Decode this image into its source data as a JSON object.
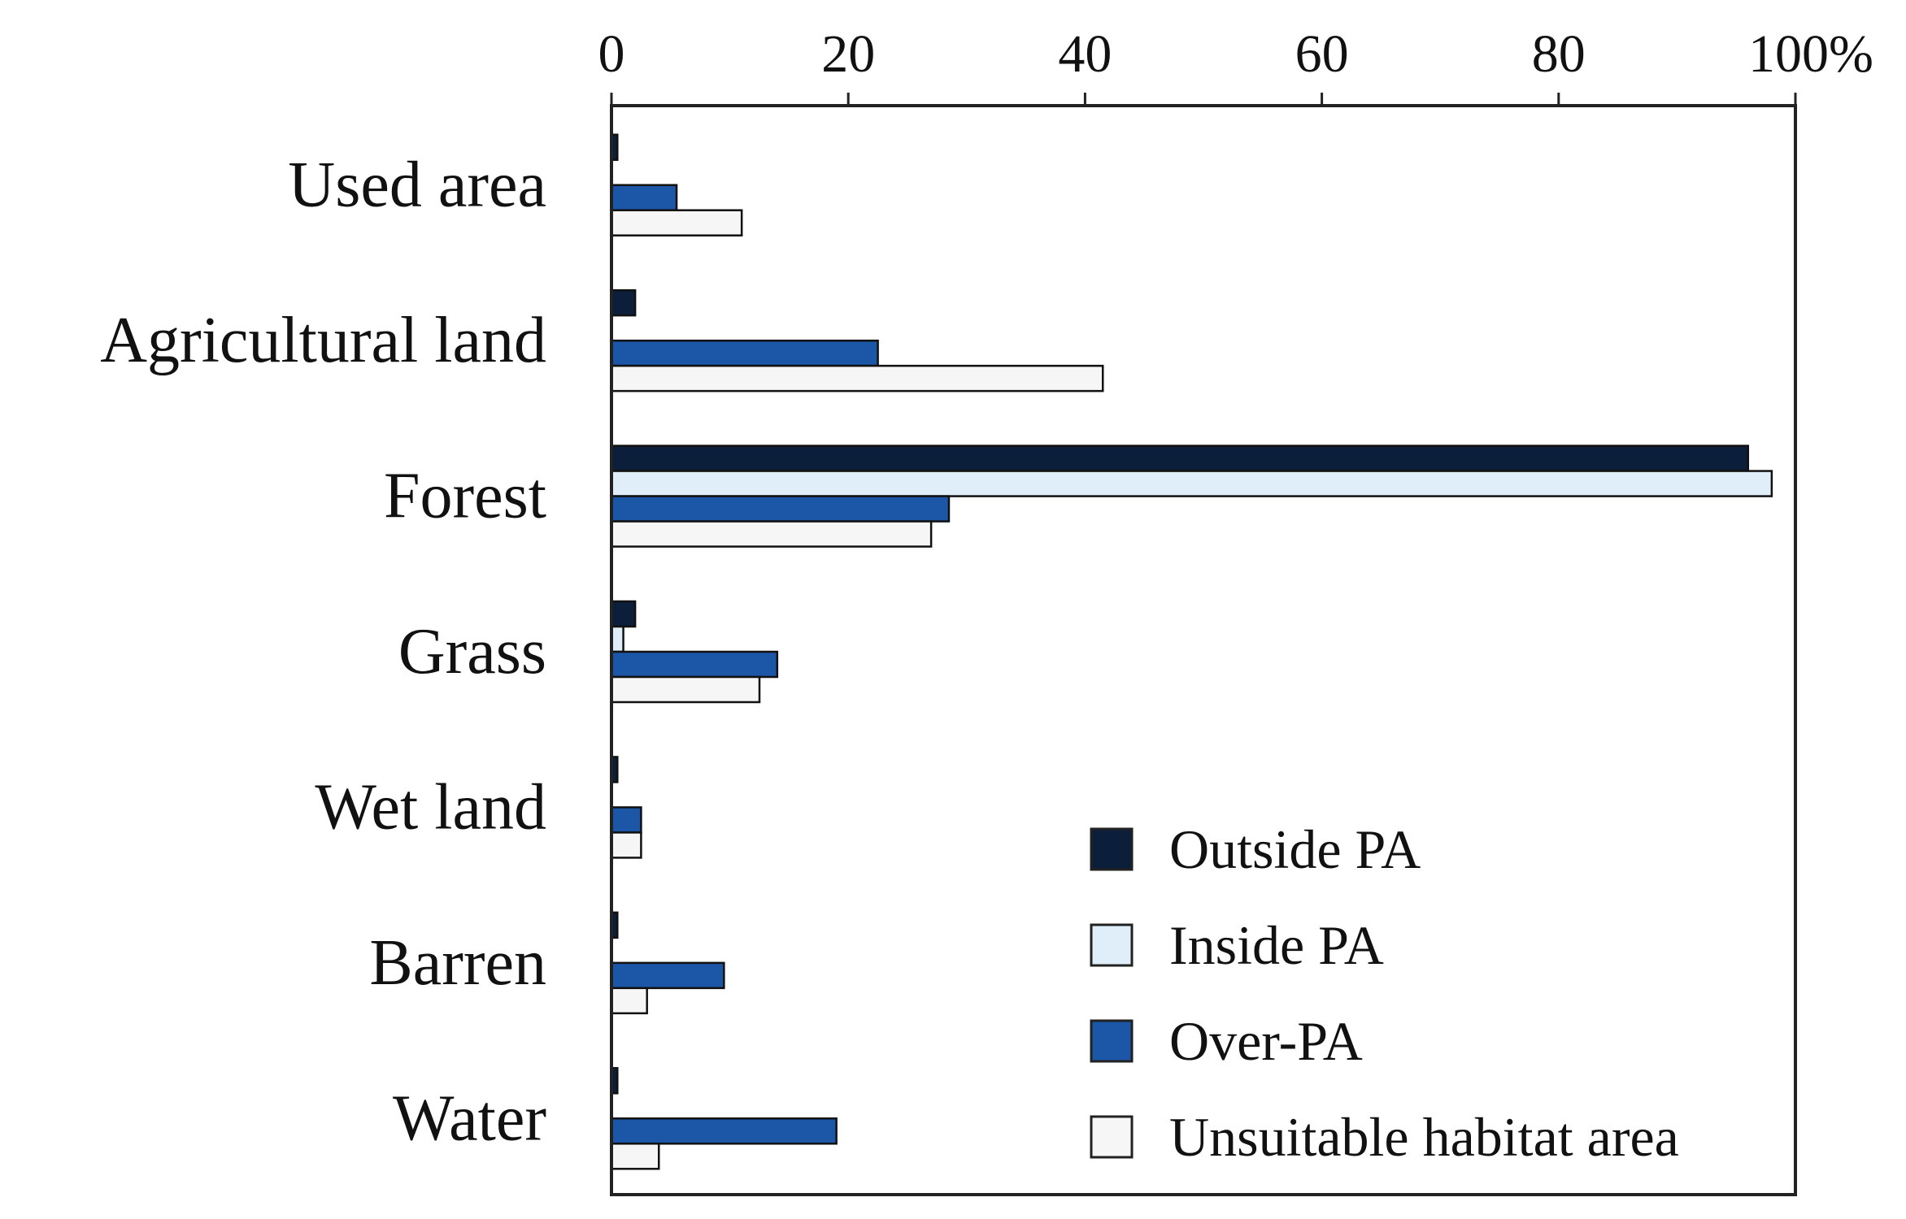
{
  "chart_data": {
    "type": "bar",
    "orientation": "horizontal",
    "categories": [
      "Used area",
      "Agricultural land",
      "Forest",
      "Grass",
      "Wet land",
      "Barren",
      "Water"
    ],
    "series": [
      {
        "name": "Outside PA",
        "color": "#0b1f3a",
        "values": [
          0.5,
          2,
          96,
          2,
          0.5,
          0.5,
          0.5
        ]
      },
      {
        "name": "Inside PA",
        "color": "#dfeef8",
        "values": [
          0,
          0,
          98,
          1,
          0,
          0,
          0
        ]
      },
      {
        "name": "Over-PA",
        "color": "#1c56a6",
        "values": [
          5.5,
          22.5,
          28.5,
          14,
          2.5,
          9.5,
          19
        ]
      },
      {
        "name": "Unsuitable habitat area",
        "color": "#f6f6f6",
        "values": [
          11,
          41.5,
          27,
          12.5,
          2.5,
          3,
          4
        ]
      }
    ],
    "xlim": [
      0,
      100
    ],
    "ticks": [
      "0",
      "20",
      "40",
      "60",
      "80",
      "100%"
    ],
    "tick_values": [
      0,
      20,
      40,
      60,
      80,
      100
    ],
    "xaxis_position": "top",
    "legend_position": "bottom-right",
    "title": "",
    "xlabel": "",
    "ylabel": ""
  }
}
